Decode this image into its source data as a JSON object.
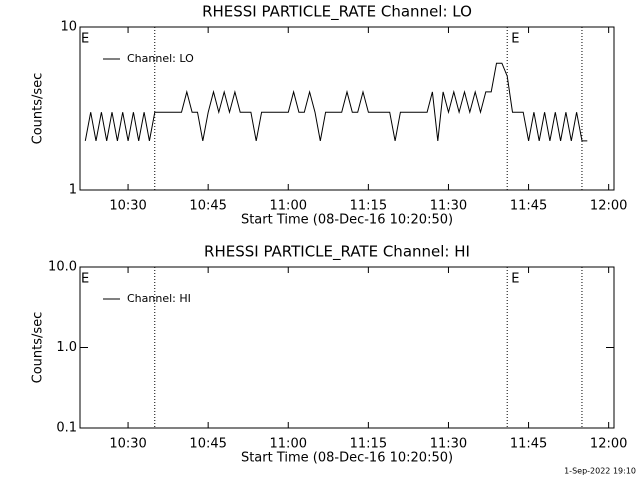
{
  "chart_data": [
    {
      "type": "line",
      "title": "RHESSI PARTICLE_RATE Channel: LO",
      "ylabel": "Counts/sec",
      "xlabel": "Start Time (08-Dec-16 10:20:50)",
      "log_y": true,
      "ylim": [
        1,
        10
      ],
      "yticks": [
        1,
        10
      ],
      "xlim": [
        "10:21",
        "12:01"
      ],
      "xticks": [
        "10:30",
        "10:45",
        "11:00",
        "11:15",
        "11:30",
        "11:45",
        "12:00"
      ],
      "markers": [
        "10:35",
        "11:41",
        "11:55"
      ],
      "annotations": [
        "E",
        "E"
      ],
      "legend": "upper left",
      "x": [
        "10:22",
        "10:23",
        "10:24",
        "10:25",
        "10:26",
        "10:27",
        "10:28",
        "10:29",
        "10:30",
        "10:31",
        "10:32",
        "10:33",
        "10:34",
        "10:35",
        "10:36",
        "10:37",
        "10:38",
        "10:39",
        "10:40",
        "10:41",
        "10:42",
        "10:43",
        "10:44",
        "10:45",
        "10:46",
        "10:47",
        "10:48",
        "10:49",
        "10:50",
        "10:51",
        "10:52",
        "10:53",
        "10:54",
        "10:55",
        "10:56",
        "10:57",
        "10:58",
        "10:59",
        "11:00",
        "11:01",
        "11:02",
        "11:03",
        "11:04",
        "11:05",
        "11:06",
        "11:07",
        "11:08",
        "11:09",
        "11:10",
        "11:11",
        "11:12",
        "11:13",
        "11:14",
        "11:15",
        "11:16",
        "11:17",
        "11:18",
        "11:19",
        "11:20",
        "11:21",
        "11:22",
        "11:23",
        "11:24",
        "11:25",
        "11:26",
        "11:27",
        "11:28",
        "11:29",
        "11:30",
        "11:31",
        "11:32",
        "11:33",
        "11:34",
        "11:35",
        "11:36",
        "11:37",
        "11:38",
        "11:39",
        "11:40",
        "11:41",
        "11:42",
        "11:43",
        "11:44",
        "11:45",
        "11:46",
        "11:47",
        "11:48",
        "11:49",
        "11:50",
        "11:51",
        "11:52",
        "11:53",
        "11:54",
        "11:55",
        "11:56"
      ],
      "series": [
        {
          "name": "Channel: LO",
          "color": "#000000",
          "values": [
            2,
            3,
            2,
            3,
            2,
            3,
            2,
            3,
            2,
            3,
            2,
            3,
            2,
            3,
            3,
            3,
            3,
            3,
            3,
            4,
            3,
            3,
            2,
            3,
            4,
            3,
            4,
            3,
            4,
            3,
            3,
            3,
            2,
            3,
            3,
            3,
            3,
            3,
            3,
            4,
            3,
            3,
            4,
            3,
            2,
            3,
            3,
            3,
            3,
            4,
            3,
            3,
            4,
            3,
            3,
            3,
            3,
            3,
            2,
            3,
            3,
            3,
            3,
            3,
            3,
            4,
            2,
            4,
            3,
            4,
            3,
            4,
            3,
            4,
            3,
            4,
            4,
            6,
            6,
            5,
            3,
            3,
            3,
            2,
            3,
            2,
            3,
            2,
            3,
            2,
            3,
            2,
            3,
            2,
            2
          ]
        }
      ]
    },
    {
      "type": "line",
      "title": "RHESSI PARTICLE_RATE Channel: HI",
      "ylabel": "Counts/sec",
      "xlabel": "Start Time (08-Dec-16 10:20:50)",
      "log_y": true,
      "ylim": [
        0.1,
        10
      ],
      "yticks": [
        {
          "value": 0.1,
          "label": "0.1"
        },
        {
          "value": 1,
          "label": "1.0"
        },
        {
          "value": 10,
          "label": "10.0"
        }
      ],
      "xlim": [
        "10:21",
        "12:01"
      ],
      "xticks": [
        "10:30",
        "10:45",
        "11:00",
        "11:15",
        "11:30",
        "11:45",
        "12:00"
      ],
      "markers": [
        "10:35",
        "11:41",
        "11:55"
      ],
      "annotations": [
        "E",
        "E"
      ],
      "legend": "upper left",
      "x": [],
      "series": [
        {
          "name": "Channel: HI",
          "color": "#000000",
          "values": []
        }
      ]
    }
  ],
  "footer": "1-Sep-2022 19:10"
}
